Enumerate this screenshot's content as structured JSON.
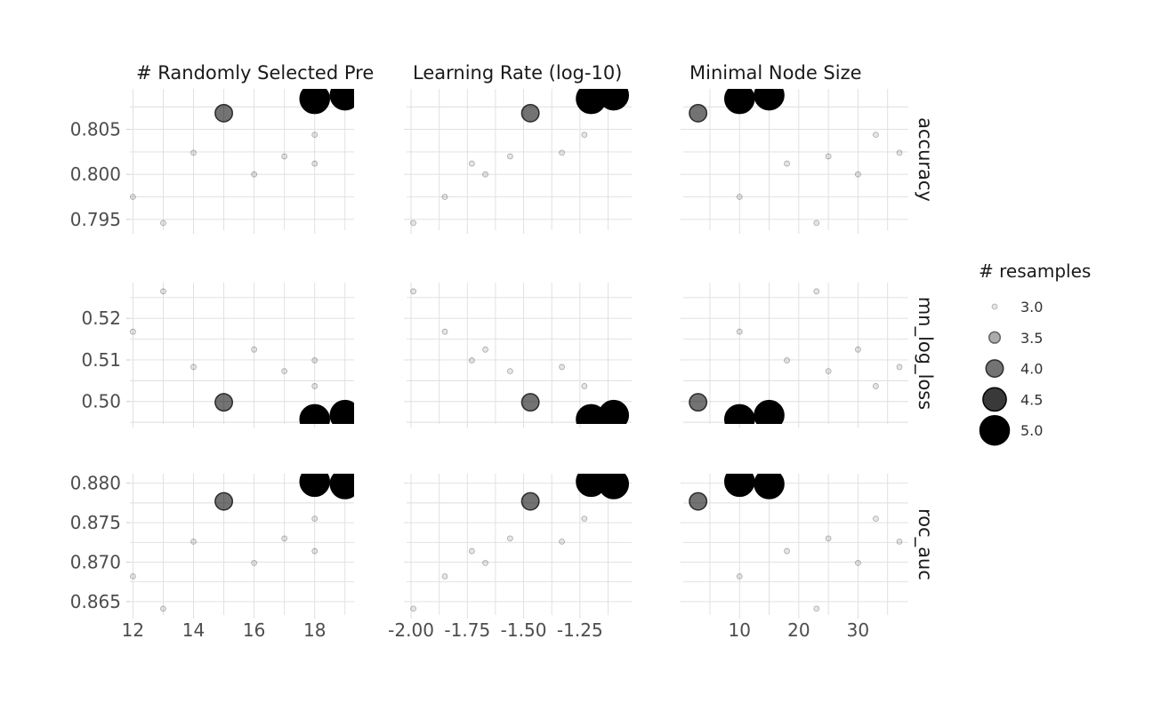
{
  "chart_data": {
    "type": "scatter",
    "facet_columns": [
      {
        "label": "# Randomly Selected Pre",
        "xlim": [
          11.9,
          19.3
        ],
        "x_ticks": [
          12,
          14,
          16,
          18
        ],
        "x_tick_labels": [
          "12",
          "14",
          "16",
          "18"
        ]
      },
      {
        "label": "Learning Rate (log-10)",
        "xlim": [
          -2.02,
          -1.02
        ],
        "x_ticks": [
          -2.0,
          -1.75,
          -1.5,
          -1.25
        ],
        "x_tick_labels": [
          "-2.00",
          "-1.75",
          "-1.50",
          "-1.25"
        ]
      },
      {
        "label": "Minimal Node Size",
        "xlim": [
          0.5,
          38.5
        ],
        "x_ticks": [
          10,
          20,
          30
        ],
        "x_tick_labels": [
          "10",
          "20",
          "30"
        ]
      }
    ],
    "facet_rows": [
      {
        "label": "accuracy",
        "ylim": [
          0.7938,
          0.8095
        ],
        "y_ticks": [
          0.795,
          0.8,
          0.805
        ],
        "y_tick_labels": [
          "0.795",
          "0.800",
          "0.805"
        ]
      },
      {
        "label": "mn_log_loss",
        "ylim": [
          0.4946,
          0.5286
        ],
        "y_ticks": [
          0.5,
          0.51,
          0.52
        ],
        "y_tick_labels": [
          "0.50",
          "0.51",
          "0.52"
        ]
      },
      {
        "label": "roc_auc",
        "ylim": [
          0.8633,
          0.8812
        ],
        "y_ticks": [
          0.865,
          0.87,
          0.875,
          0.88
        ],
        "y_tick_labels": [
          "0.865",
          "0.870",
          "0.875",
          "0.880"
        ]
      }
    ],
    "configs": [
      {
        "mtry": 12,
        "learn_rate": -1.85,
        "min_n": 10,
        "resamples": 3,
        "accuracy": 0.7975,
        "mn_log_loss": 0.5168,
        "roc_auc": 0.8682
      },
      {
        "mtry": 13,
        "learn_rate": -1.99,
        "min_n": 23,
        "resamples": 3,
        "accuracy": 0.7946,
        "mn_log_loss": 0.5265,
        "roc_auc": 0.8641
      },
      {
        "mtry": 14,
        "learn_rate": -1.33,
        "min_n": 37,
        "resamples": 3,
        "accuracy": 0.8024,
        "mn_log_loss": 0.5083,
        "roc_auc": 0.8726
      },
      {
        "mtry": 15,
        "learn_rate": -1.47,
        "min_n": 3,
        "resamples": 4,
        "accuracy": 0.8068,
        "mn_log_loss": 0.4998,
        "roc_auc": 0.8777
      },
      {
        "mtry": 16,
        "learn_rate": -1.67,
        "min_n": 30,
        "resamples": 3,
        "accuracy": 0.8,
        "mn_log_loss": 0.5125,
        "roc_auc": 0.8699
      },
      {
        "mtry": 17,
        "learn_rate": -1.56,
        "min_n": 25,
        "resamples": 3,
        "accuracy": 0.802,
        "mn_log_loss": 0.5073,
        "roc_auc": 0.873
      },
      {
        "mtry": 18,
        "learn_rate": -1.23,
        "min_n": 33,
        "resamples": 3,
        "accuracy": 0.8044,
        "mn_log_loss": 0.5037,
        "roc_auc": 0.8755
      },
      {
        "mtry": 18,
        "learn_rate": -1.73,
        "min_n": 18,
        "resamples": 3,
        "accuracy": 0.8012,
        "mn_log_loss": 0.5099,
        "roc_auc": 0.8714
      },
      {
        "mtry": 18,
        "learn_rate": -1.2,
        "min_n": 10,
        "resamples": 5,
        "accuracy": 0.8084,
        "mn_log_loss": 0.4957,
        "roc_auc": 0.8802
      },
      {
        "mtry": 19,
        "learn_rate": -1.1,
        "min_n": 15,
        "resamples": 5,
        "accuracy": 0.8088,
        "mn_log_loss": 0.4967,
        "roc_auc": 0.8799
      }
    ],
    "legend": {
      "title": "# resamples",
      "entries": [
        {
          "value": 3.0,
          "label": "3.0"
        },
        {
          "value": 3.5,
          "label": "3.5"
        },
        {
          "value": 4.0,
          "label": "4.0"
        },
        {
          "value": 4.5,
          "label": "4.5"
        },
        {
          "value": 5.0,
          "label": "5.0"
        }
      ],
      "position": "right"
    },
    "grid": true,
    "point_color": "#000000"
  }
}
